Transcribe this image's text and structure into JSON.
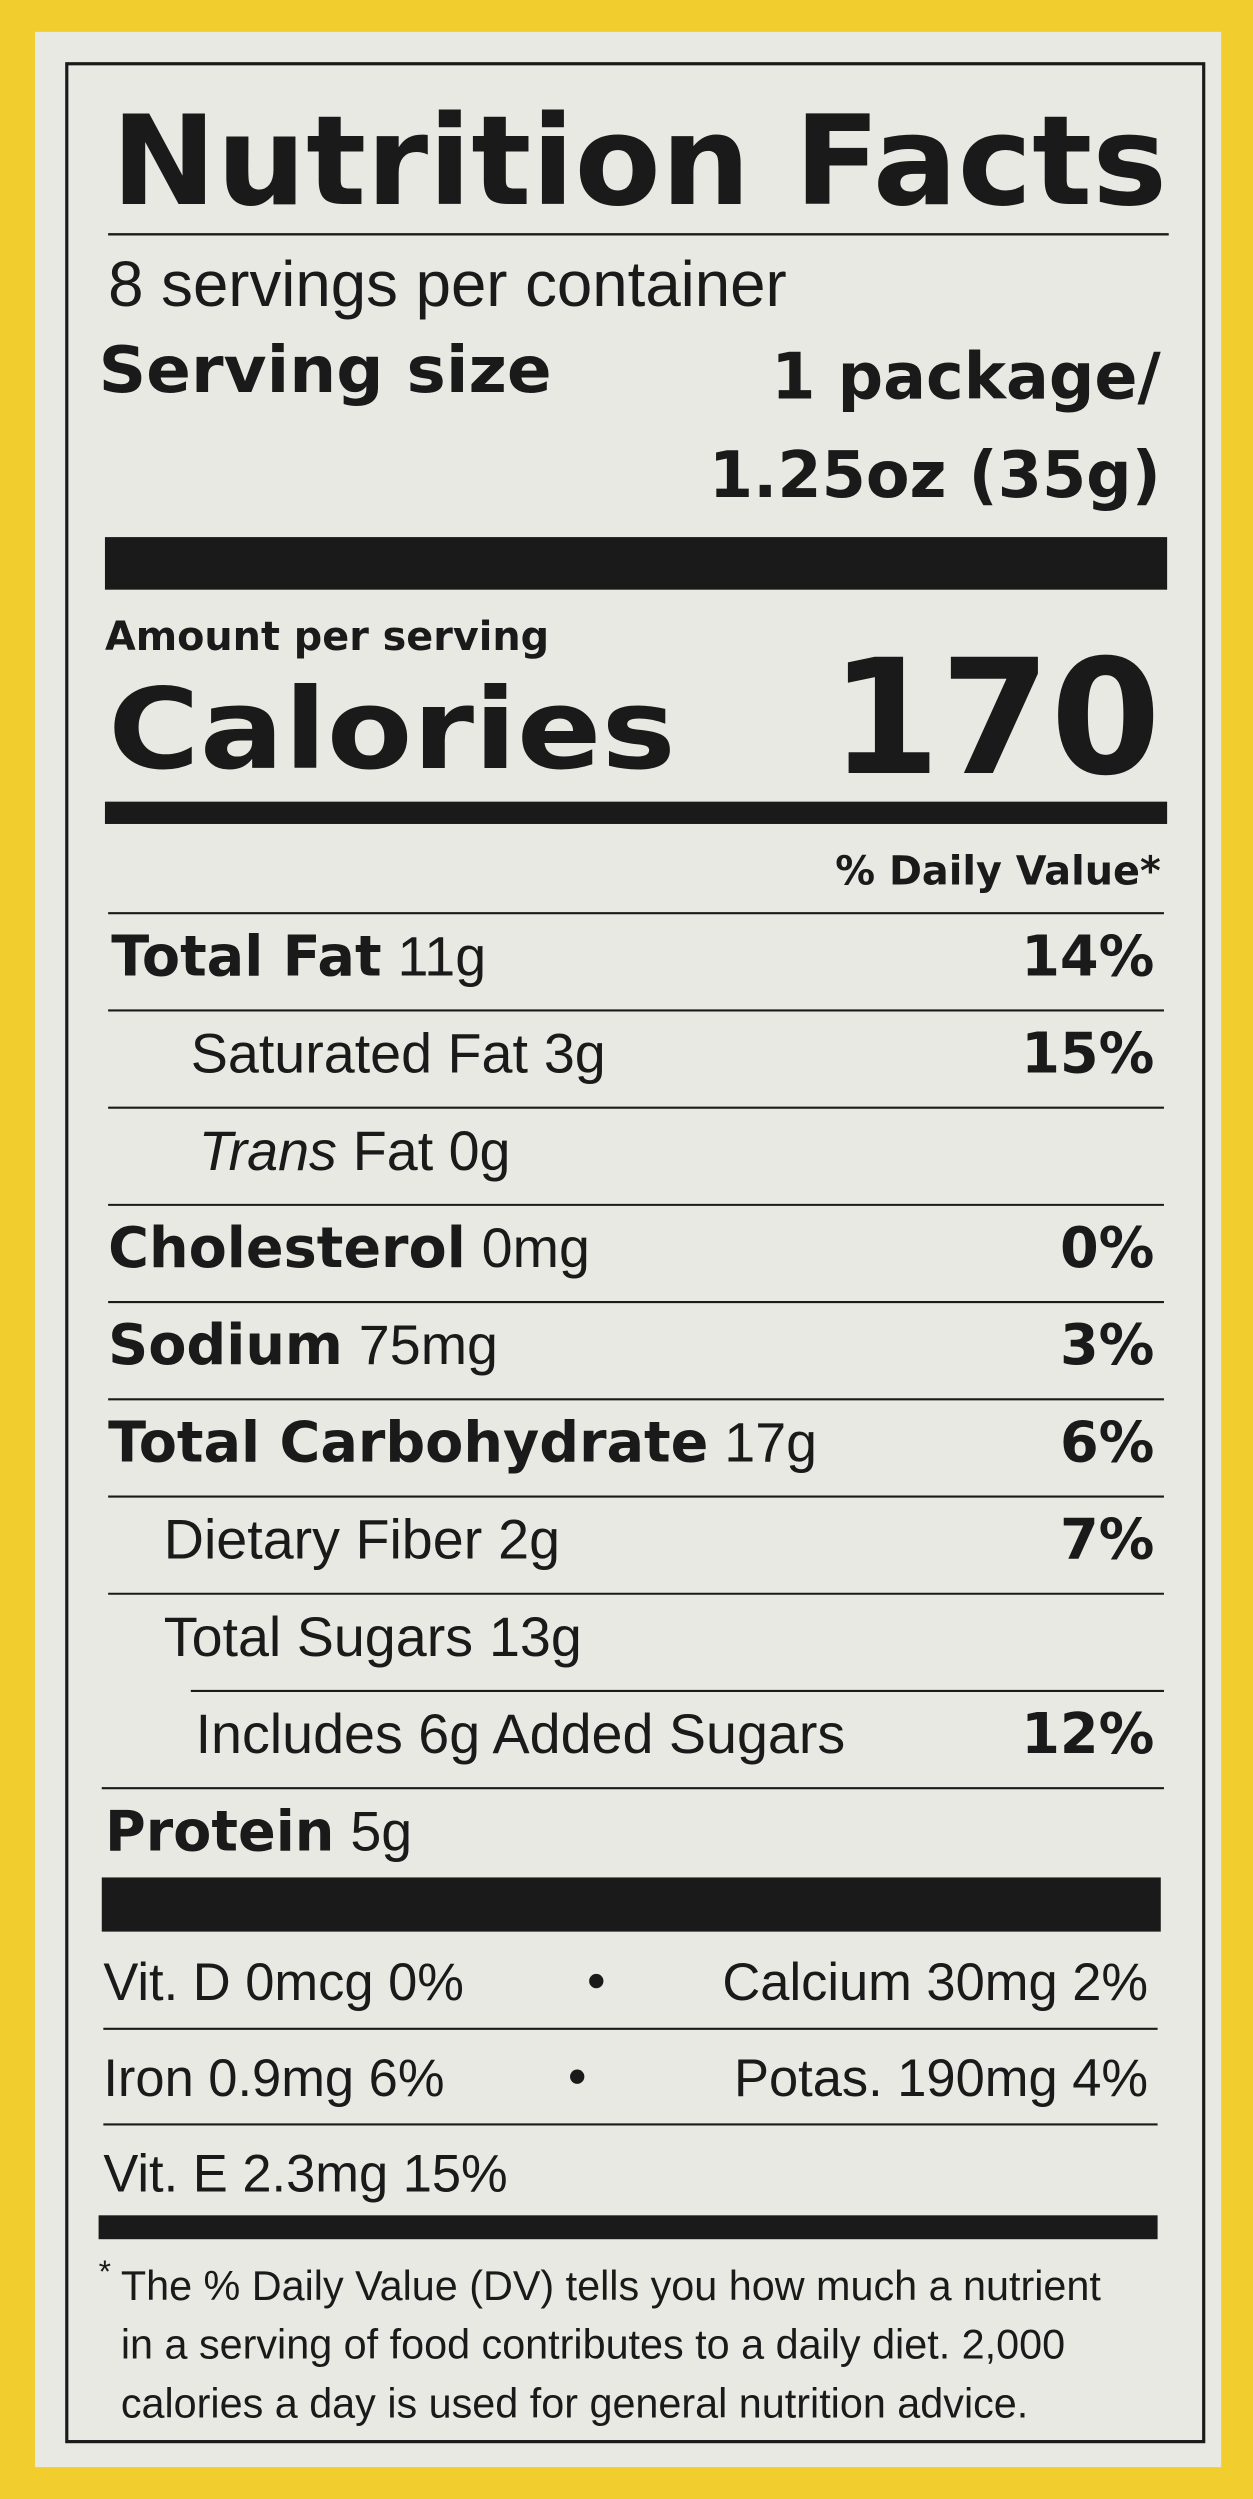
{
  "title": "Nutrition Facts",
  "servings": "8 servings per container",
  "serving_size": {
    "label": "Serving size",
    "value": [
      "1 package/",
      "1.25oz (35g)"
    ]
  },
  "amount_per_serving": "Amount per serving",
  "calories": {
    "label": "Calories",
    "value": 170
  },
  "daily_value_header": "% Daily Value*",
  "nutrients": [
    {
      "name": "Total Fat",
      "amount": "11g",
      "dv": "14%"
    },
    {
      "name": "Saturated Fat",
      "amount": "3g",
      "dv": "15%"
    },
    {
      "name": "Trans",
      "amount": "Fat 0g"
    },
    {
      "name": "Cholesterol",
      "amount": "0mg",
      "dv": "0%"
    },
    {
      "name": "Sodium",
      "amount": "75mg",
      "dv": "3%"
    },
    {
      "name": "Total Carbohydrate",
      "amount": "17g",
      "dv": "6%"
    },
    {
      "name": "Dietary Fiber",
      "amount": "2g",
      "dv": "7%"
    },
    {
      "name": "Total Sugars",
      "amount": "13g"
    },
    {
      "name": "Includes 6g Added Sugars",
      "dv": "12%"
    },
    {
      "name": "Protein",
      "amount": "5g"
    }
  ],
  "vitamins": [
    [
      "Vit. D 0mcg 0%",
      "Calcium 30mg 2%"
    ],
    [
      "Iron 0.9mg 6%",
      "Potas. 190mg 4%"
    ],
    [
      "Vit. E 2.3mg 15%"
    ]
  ],
  "footnote": {
    "mark": "*",
    "lines": [
      "The % Daily Value (DV) tells you how much a nutrient",
      "in a serving of food contributes to a daily diet. 2,000",
      "calories a day is used for general nutrition advice."
    ]
  }
}
